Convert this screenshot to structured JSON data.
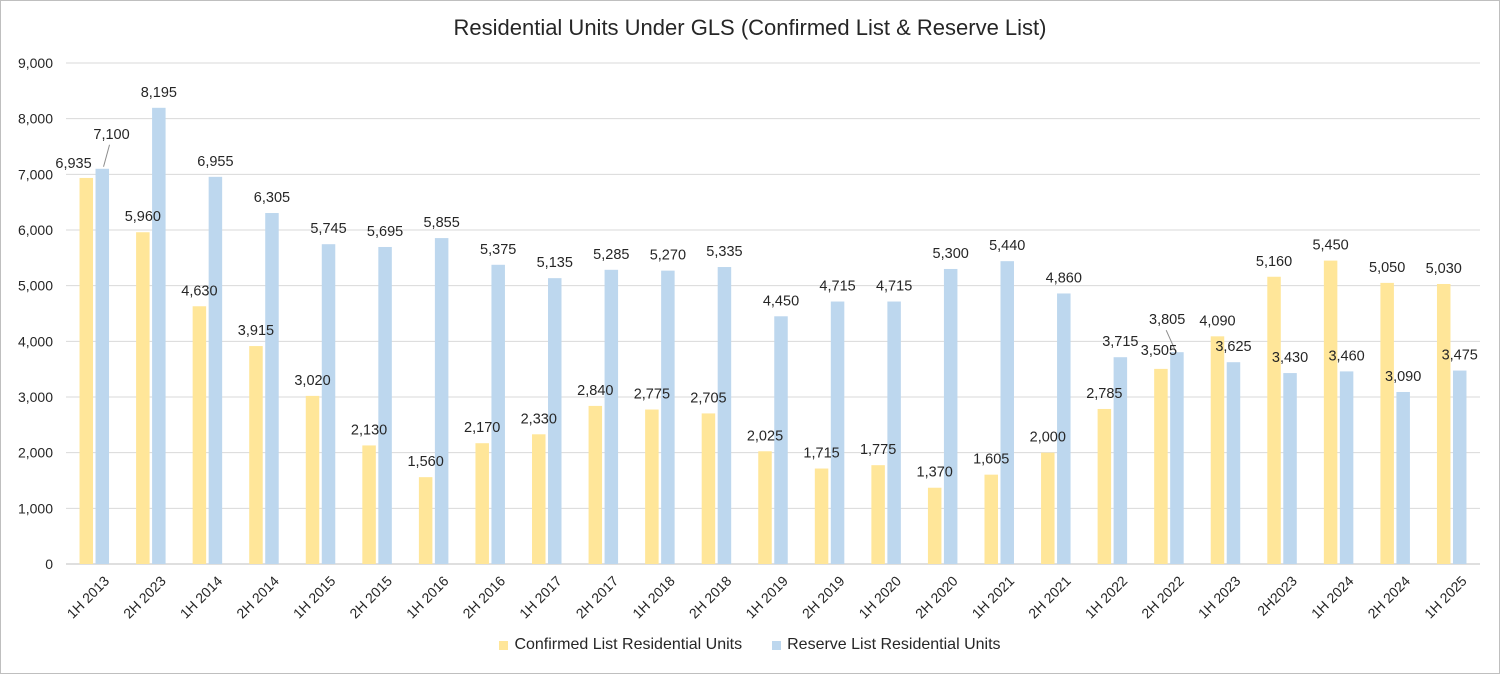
{
  "chart_data": {
    "type": "bar",
    "title": "Residential Units Under GLS (Confirmed List & Reserve List)",
    "xlabel": "",
    "ylabel": "",
    "ylim": [
      0,
      9000
    ],
    "yticks": [
      0,
      1000,
      2000,
      3000,
      4000,
      5000,
      6000,
      7000,
      8000,
      9000
    ],
    "ytick_labels": [
      "0",
      "1,000",
      "2,000",
      "3,000",
      "4,000",
      "5,000",
      "6,000",
      "7,000",
      "8,000",
      "9,000"
    ],
    "grid": true,
    "legend_position": "bottom",
    "categories": [
      "1H 2013",
      "2H 2023",
      "1H 2014",
      "2H 2014",
      "1H 2015",
      "2H 2015",
      "1H 2016",
      "2H 2016",
      "1H 2017",
      "2H 2017",
      "1H 2018",
      "2H 2018",
      "1H 2019",
      "2H 2019",
      "1H 2020",
      "2H 2020",
      "1H 2021",
      "2H 2021",
      "1H 2022",
      "2H 2022",
      "1H 2023",
      "2H2023",
      "1H 2024",
      "2H 2024",
      "1H 2025"
    ],
    "series": [
      {
        "name": "Confirmed List Residential Units",
        "color": "#ffe699",
        "values": [
          6935,
          5960,
          4630,
          3915,
          3020,
          2130,
          1560,
          2170,
          2330,
          2840,
          2775,
          2705,
          2025,
          1715,
          1775,
          1370,
          1605,
          2000,
          2785,
          3505,
          4090,
          5160,
          5450,
          5050,
          5030
        ],
        "value_labels": [
          "6,935",
          "5,960",
          "4,630",
          "3,915",
          "3,020",
          "2,130",
          "1,560",
          "2,170",
          "2,330",
          "2,840",
          "2,775",
          "2,705",
          "2,025",
          "1,715",
          "1,775",
          "1,370",
          "1,605",
          "2,000",
          "2,785",
          "3,505",
          "4,090",
          "5,160",
          "5,450",
          "5,050",
          "5,030"
        ]
      },
      {
        "name": "Reserve List Residential Units",
        "color": "#bdd7ee",
        "values": [
          7100,
          8195,
          6955,
          6305,
          5745,
          5695,
          5855,
          5375,
          5135,
          5285,
          5270,
          5335,
          4450,
          4715,
          4715,
          5300,
          5440,
          4860,
          3715,
          3805,
          3625,
          3430,
          3460,
          3090,
          3475
        ],
        "value_labels": [
          "7,100",
          "8,195",
          "6,955",
          "6,305",
          "5,745",
          "5,695",
          "5,855",
          "5,375",
          "5,135",
          "5,285",
          "5,270",
          "5,335",
          "4,450",
          "4,715",
          "4,715",
          "5,300",
          "5,440",
          "4,860",
          "3,715",
          "3,805",
          "3,625",
          "3,430",
          "3,460",
          "3,090",
          "3,475"
        ]
      }
    ]
  }
}
